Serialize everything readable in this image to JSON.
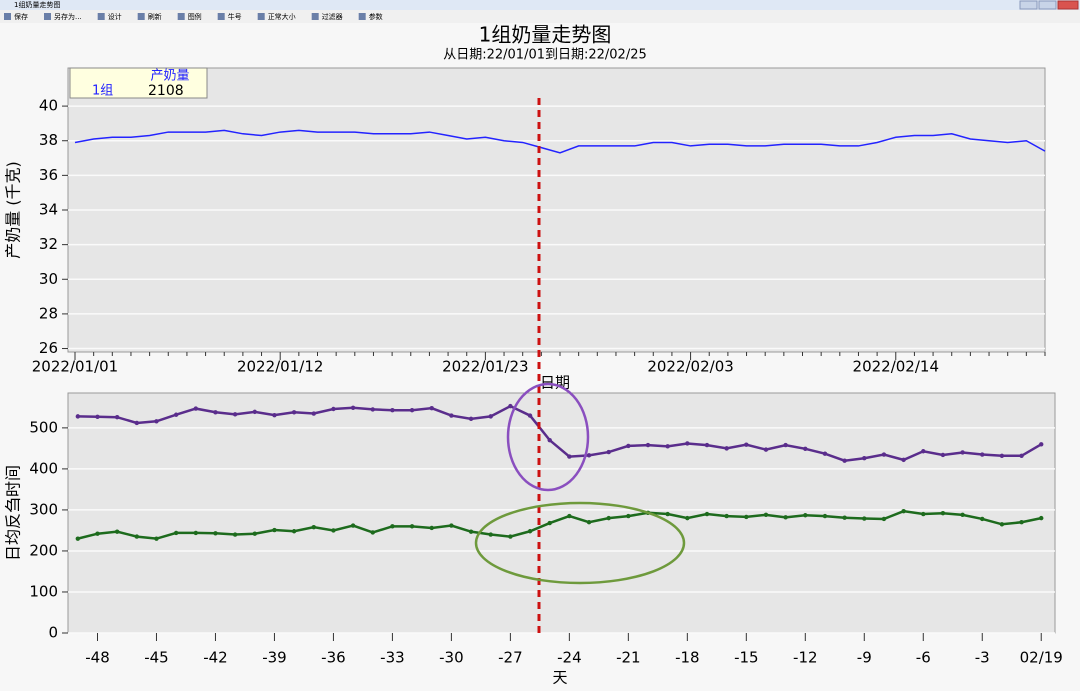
{
  "window": {
    "title": "1组奶量走势图"
  },
  "toolbar": [
    "保存",
    "另存为...",
    "设计",
    "刷新",
    "图例",
    "牛号",
    "正常大小",
    "过滤器",
    "参数"
  ],
  "chart_data": [
    {
      "type": "line",
      "title": "1组奶量走势图",
      "subtitle": "从日期:22/01/01到日期:22/02/25",
      "y_label": "产奶量 (千克)",
      "x_label": "日期",
      "legend_title": "产奶量",
      "legend_value": 2108,
      "categories": [
        "2022/01/01",
        null,
        null,
        null,
        null,
        null,
        null,
        null,
        null,
        null,
        null,
        "2022/01/12",
        null,
        null,
        null,
        null,
        null,
        null,
        null,
        null,
        null,
        null,
        "2022/01/23",
        null,
        null,
        null,
        null,
        null,
        null,
        null,
        null,
        null,
        null,
        "2022/02/03",
        null,
        null,
        null,
        null,
        null,
        null,
        null,
        null,
        null,
        null,
        "2022/02/14",
        null,
        null,
        null,
        null,
        null,
        null,
        null,
        null
      ],
      "series": [
        {
          "name": "1组",
          "color": "#2323ff",
          "values": [
            37.9,
            38.1,
            38.2,
            38.2,
            38.3,
            38.5,
            38.5,
            38.5,
            38.6,
            38.4,
            38.3,
            38.5,
            38.6,
            38.5,
            38.5,
            38.5,
            38.4,
            38.4,
            38.4,
            38.5,
            38.3,
            38.1,
            38.2,
            38.0,
            37.9,
            37.6,
            37.3,
            37.7,
            37.7,
            37.7,
            37.7,
            37.9,
            37.9,
            37.7,
            37.8,
            37.8,
            37.7,
            37.7,
            37.8,
            37.8,
            37.8,
            37.7,
            37.7,
            37.9,
            38.2,
            38.3,
            38.3,
            38.4,
            38.1,
            38.0,
            37.9,
            38.0,
            37.4
          ]
        }
      ],
      "ylim": [
        25.8,
        42.2
      ],
      "yticks": [
        26,
        28,
        30,
        32,
        34,
        36,
        38,
        40
      ],
      "grid": true
    },
    {
      "type": "line",
      "y_label": "日均反刍时间",
      "x_label": "天",
      "x": [
        -49,
        -48,
        -47,
        -46,
        -45,
        -44,
        -43,
        -42,
        -41,
        -40,
        -39,
        -38,
        -37,
        -36,
        -35,
        -34,
        -33,
        -32,
        -31,
        -30,
        -29,
        -28,
        -27,
        -26,
        -25,
        -24,
        -23,
        -22,
        -21,
        -20,
        -19,
        -18,
        -17,
        -16,
        -15,
        -14,
        -13,
        -12,
        -11,
        -10,
        -9,
        -8,
        -7,
        -6,
        -5,
        -4,
        -3,
        -2,
        -1,
        0
      ],
      "series": [
        {
          "color": "#5a2d8c",
          "values": [
            528,
            527,
            526,
            512,
            516,
            532,
            547,
            538,
            533,
            539,
            531,
            538,
            535,
            546,
            549,
            545,
            543,
            543,
            548,
            530,
            522,
            528,
            553,
            530,
            470,
            430,
            433,
            441,
            456,
            458,
            455,
            462,
            458,
            450,
            459,
            447,
            458,
            449,
            437,
            420,
            426,
            435,
            422,
            443,
            434,
            440,
            435,
            432,
            432,
            460
          ]
        },
        {
          "color": "#1d6b1d",
          "values": [
            230,
            242,
            247,
            235,
            230,
            244,
            244,
            243,
            240,
            242,
            251,
            248,
            258,
            250,
            262,
            245,
            260,
            260,
            256,
            262,
            247,
            240,
            235,
            248,
            268,
            285,
            270,
            280,
            285,
            293,
            290,
            280,
            290,
            285,
            283,
            288,
            282,
            287,
            285,
            281,
            279,
            278,
            297,
            290,
            292,
            288,
            278,
            265,
            270,
            280
          ]
        }
      ],
      "xlim": [
        -49.5,
        0.7
      ],
      "xticks": [
        -48,
        -45,
        -42,
        -39,
        -36,
        -33,
        -30,
        -27,
        -24,
        -21,
        -18,
        -15,
        -12,
        -9,
        -6,
        -3,
        {
          "value": 0,
          "label": "02/19"
        }
      ],
      "ylim": [
        0,
        585
      ],
      "yticks": [
        0,
        100,
        200,
        300,
        400,
        500
      ],
      "grid": true
    }
  ]
}
